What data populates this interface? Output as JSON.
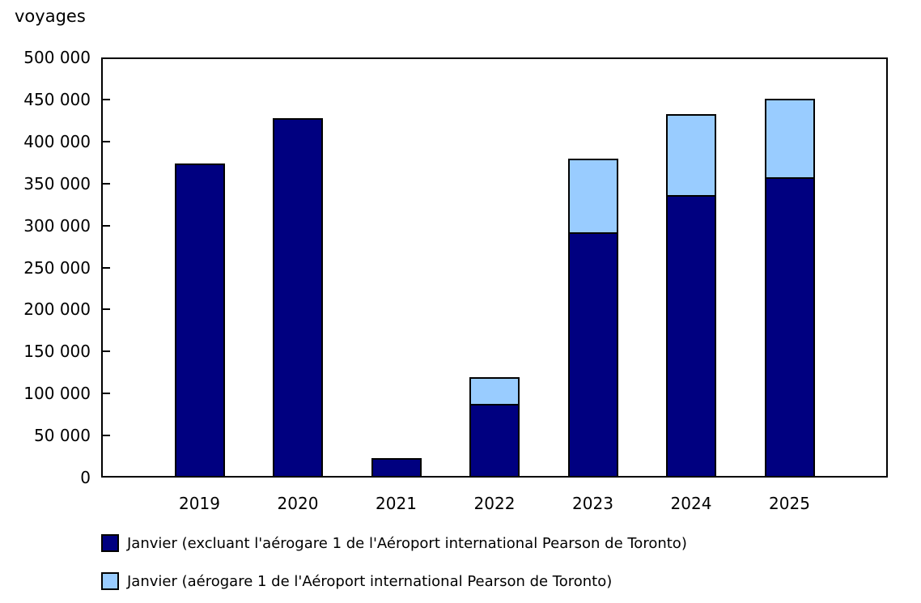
{
  "chart_data": {
    "type": "bar",
    "stacked": true,
    "title": "",
    "ylabel": "voyages",
    "xlabel": "",
    "categories": [
      "2019",
      "2020",
      "2021",
      "2022",
      "2023",
      "2024",
      "2025"
    ],
    "series": [
      {
        "name": "Janvier (excluant l'aérogare 1 de l'Aéroport international Pearson de Toronto)",
        "color": "#000080",
        "values": [
          374000,
          428000,
          23000,
          88000,
          292000,
          336000,
          357000
        ]
      },
      {
        "name": "Janvier (aérogare 1 de l'Aéroport international Pearson de Toronto)",
        "color": "#99ccff",
        "values": [
          0,
          0,
          0,
          31000,
          88000,
          97000,
          94000
        ]
      }
    ],
    "stacked_totals": [
      374000,
      428000,
      23000,
      119000,
      380000,
      433000,
      451000
    ],
    "ylim": [
      0,
      500000
    ],
    "ytick_step": 50000,
    "ytick_labels": [
      "0",
      "50 000",
      "100 000",
      "150 000",
      "200 000",
      "250 000",
      "300 000",
      "350 000",
      "400 000",
      "450 000",
      "500 000"
    ],
    "grid": false,
    "legend_position": "bottom-left",
    "axis_color": "#000000",
    "background_color": "#ffffff"
  }
}
